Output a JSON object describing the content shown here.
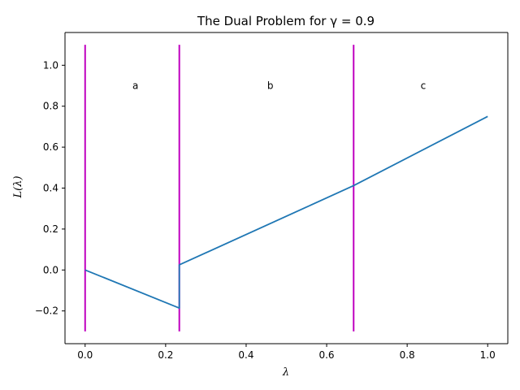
{
  "chart_data": {
    "type": "line",
    "title": "The Dual Problem for γ = 0.9",
    "xlabel": "λ",
    "ylabel": "L(λ)",
    "xlim": [
      -0.05,
      1.05
    ],
    "ylim": [
      -0.36,
      1.16
    ],
    "xticks": [
      0.0,
      0.2,
      0.4,
      0.6,
      0.8,
      1.0
    ],
    "xtick_labels": [
      "0.0",
      "0.2",
      "0.4",
      "0.6",
      "0.8",
      "1.0"
    ],
    "yticks": [
      -0.2,
      0.0,
      0.2,
      0.4,
      0.6,
      0.8,
      1.0
    ],
    "ytick_labels": [
      "−0.2",
      "0.0",
      "0.2",
      "0.4",
      "0.6",
      "0.8",
      "1.0"
    ],
    "grid": false,
    "series": [
      {
        "color": "#1f77b4",
        "x": [
          0.0,
          0.234,
          0.234,
          0.667,
          1.0
        ],
        "y": [
          0.0,
          -0.186,
          0.025,
          0.412,
          0.75
        ]
      }
    ],
    "vlines": {
      "color": "#c000c0",
      "x": [
        0.0,
        0.234,
        0.667
      ],
      "ymin": -0.3,
      "ymax": 1.1
    },
    "annotations": [
      {
        "text": "a",
        "x": 0.125,
        "y": 0.9
      },
      {
        "text": "b",
        "x": 0.46,
        "y": 0.9
      },
      {
        "text": "c",
        "x": 0.84,
        "y": 0.9
      }
    ]
  }
}
